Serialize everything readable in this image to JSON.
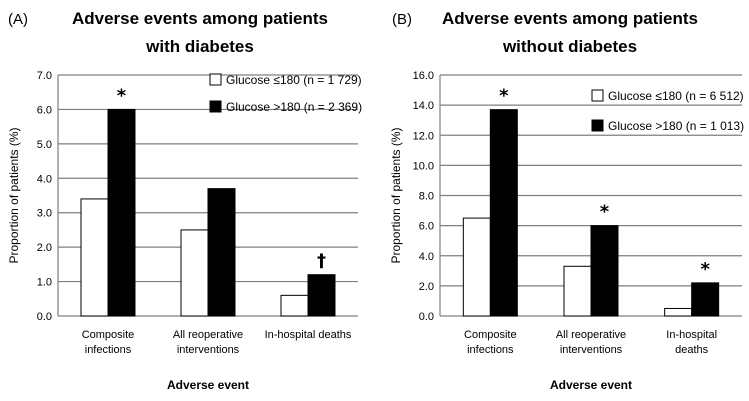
{
  "colors": {
    "bar_low": "#ffffff",
    "bar_high": "#000000",
    "grid": "#7f7f7f",
    "axis": "#7f7f7f"
  },
  "chart_data": [
    {
      "type": "bar",
      "panel_label": "(A)",
      "title": [
        "Adverse events among patients",
        "with diabetes"
      ],
      "xlabel": "Adverse event",
      "ylabel": "Proportion of patients (%)",
      "ylim": [
        0,
        7
      ],
      "ytick_step": 1,
      "yticks": [
        "0.0",
        "1.0",
        "2.0",
        "3.0",
        "4.0",
        "5.0",
        "6.0",
        "7.0"
      ],
      "grid": true,
      "legend_position": "top-right",
      "categories": [
        [
          "Composite",
          "infections"
        ],
        [
          "All reoperative",
          "interventions"
        ],
        [
          "In-hospital deaths"
        ]
      ],
      "series": [
        {
          "name": "Glucose ≤180 (n = 1 729)",
          "values": [
            3.4,
            2.5,
            0.6
          ]
        },
        {
          "name": "Glucose >180 (n = 2 369)",
          "values": [
            6.0,
            3.7,
            1.2
          ]
        }
      ],
      "annotations": [
        "*",
        "",
        "†"
      ]
    },
    {
      "type": "bar",
      "panel_label": "(B)",
      "title": [
        "Adverse events among patients",
        "without diabetes"
      ],
      "xlabel": "Adverse event",
      "ylabel": "Proportion of patients (%)",
      "ylim": [
        0,
        16
      ],
      "ytick_step": 2,
      "yticks": [
        "0.0",
        "2.0",
        "4.0",
        "6.0",
        "8.0",
        "10.0",
        "12.0",
        "14.0",
        "16.0"
      ],
      "grid": true,
      "legend_position": "top-right",
      "categories": [
        [
          "Composite",
          "infections"
        ],
        [
          "All reoperative",
          "interventions"
        ],
        [
          "In-hospital",
          "deaths"
        ]
      ],
      "series": [
        {
          "name": "Glucose ≤180 (n = 6 512)",
          "values": [
            6.5,
            3.3,
            0.5
          ]
        },
        {
          "name": "Glucose >180 (n = 1 013)",
          "values": [
            13.7,
            6.0,
            2.2
          ]
        }
      ],
      "annotations": [
        "*",
        "*",
        "*"
      ]
    }
  ]
}
